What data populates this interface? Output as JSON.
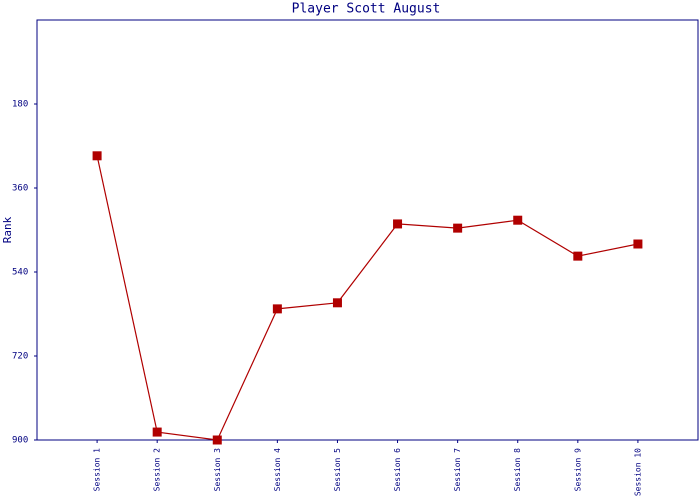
{
  "chart_data": {
    "type": "line",
    "title": "Player Scott August",
    "y_label": "Rank",
    "categories": [
      "Session 1",
      "Session 2",
      "Session 3",
      "Session 4",
      "Session 5",
      "Session 6",
      "Session 7",
      "Session 8",
      "Session 9",
      "Session 10"
    ],
    "values": [
      291,
      883,
      900,
      619,
      606,
      437,
      446,
      429,
      506,
      480
    ],
    "color": "#b00000",
    "ylim": [
      900,
      0
    ],
    "yticks": [
      180,
      360,
      540,
      720,
      900
    ],
    "grid": false
  }
}
